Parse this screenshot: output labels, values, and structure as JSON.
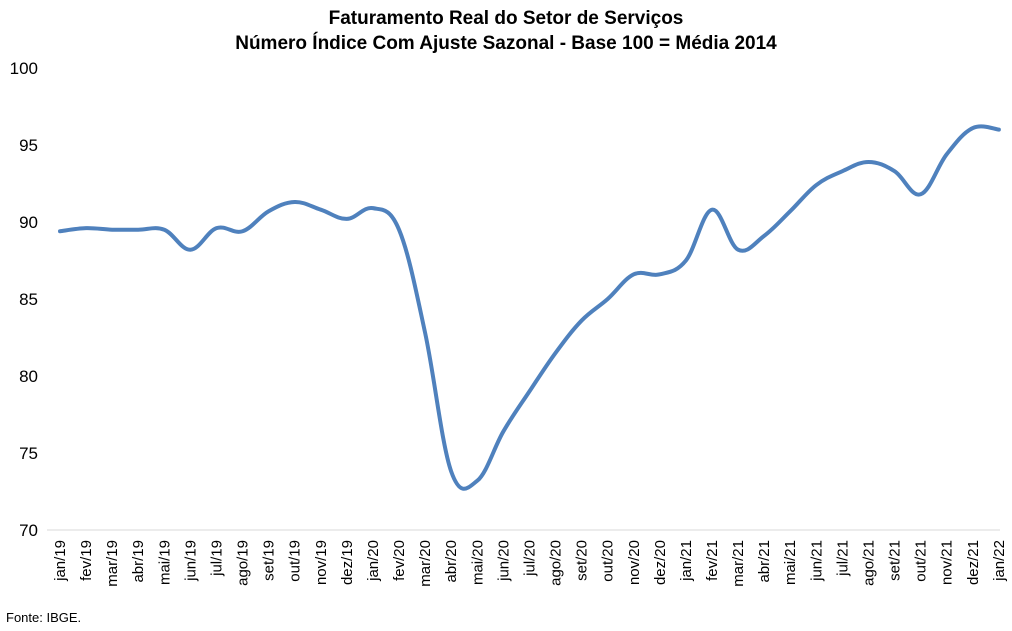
{
  "chart_data": {
    "type": "line",
    "title": "Faturamento Real do Setor de Serviços",
    "subtitle": "Número Índice Com Ajuste Sazonal - Base 100 = Média 2014",
    "categories": [
      "jan/19",
      "fev/19",
      "mar/19",
      "abr/19",
      "mai/19",
      "jun/19",
      "jul/19",
      "ago/19",
      "set/19",
      "out/19",
      "nov/19",
      "dez/19",
      "jan/20",
      "fev/20",
      "mar/20",
      "abr/20",
      "mai/20",
      "jun/20",
      "jul/20",
      "ago/20",
      "set/20",
      "out/20",
      "nov/20",
      "dez/20",
      "jan/21",
      "fev/21",
      "mar/21",
      "abr/21",
      "mai/21",
      "jun/21",
      "jul/21",
      "ago/21",
      "set/21",
      "out/21",
      "nov/21",
      "dez/21",
      "jan/22"
    ],
    "series": [
      {
        "values": [
          89.4,
          89.6,
          89.5,
          89.5,
          89.5,
          88.2,
          89.6,
          89.4,
          90.7,
          91.3,
          90.8,
          90.2,
          90.9,
          89.5,
          82.8,
          73.8,
          73.2,
          76.4,
          79.0,
          81.5,
          83.6,
          85.0,
          86.6,
          86.6,
          87.5,
          90.8,
          88.2,
          89.1,
          90.7,
          92.4,
          93.3,
          93.9,
          93.3,
          91.8,
          94.4,
          96.1,
          96.0
        ],
        "color": "#4f81bd"
      }
    ],
    "ylim": [
      70,
      100
    ],
    "yticks": [
      "70",
      "75",
      "80",
      "85",
      "90",
      "95",
      "100"
    ],
    "grid": false,
    "legend": "none",
    "source": "Fonte: IBGE."
  }
}
